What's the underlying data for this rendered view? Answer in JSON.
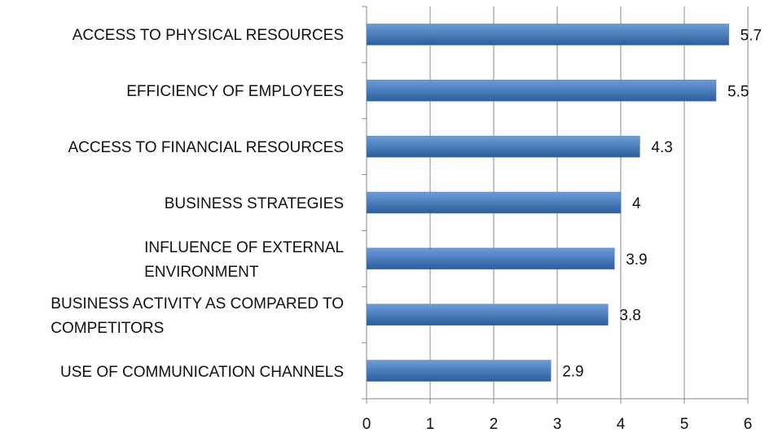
{
  "chart_data": {
    "type": "bar",
    "orientation": "horizontal",
    "categories": [
      "ACCESS TO PHYSICAL RESOURCES",
      "EFFICIENCY OF EMPLOYEES",
      "ACCESS TO FINANCIAL RESOURCES",
      "BUSINESS STRATEGIES",
      "INFLUENCE OF EXTERNAL\nENVIRONMENT",
      "BUSINESS ACTIVITY AS COMPARED TO\nCOMPETITORS",
      "USE OF COMMUNICATION CHANNELS"
    ],
    "values": [
      5.7,
      5.5,
      4.3,
      4,
      3.9,
      3.8,
      2.9
    ],
    "color": "#4a7ebb",
    "xlim": [
      0,
      6
    ],
    "xticks": [
      0,
      1,
      2,
      3,
      4,
      5,
      6
    ],
    "grid": true
  }
}
